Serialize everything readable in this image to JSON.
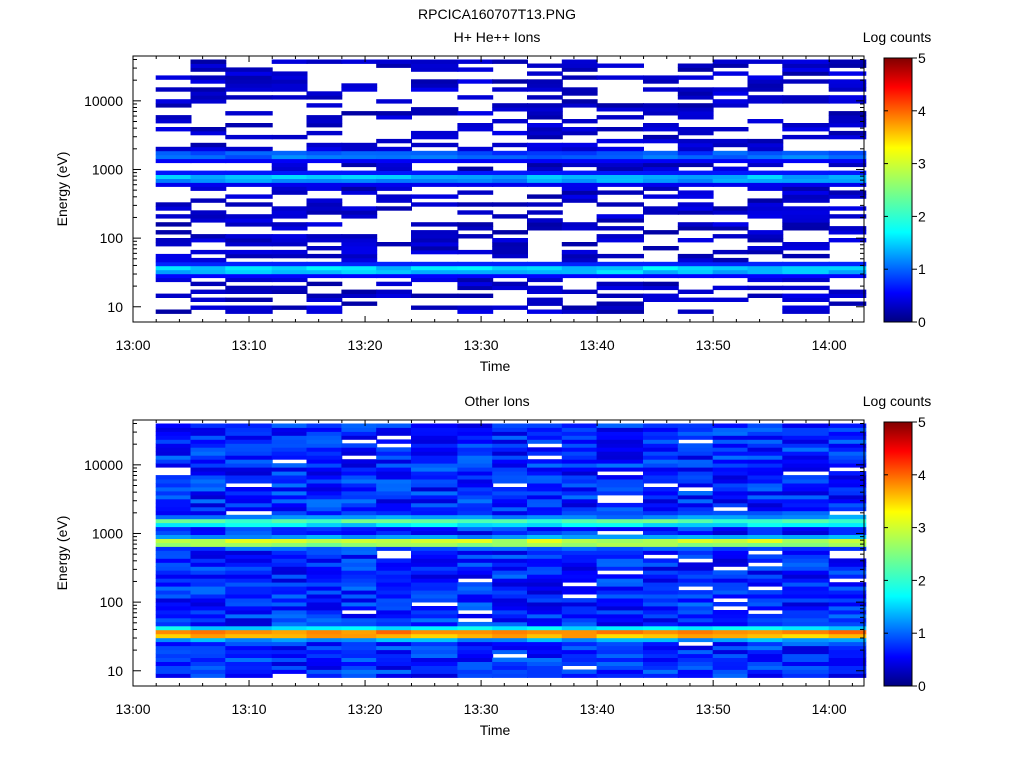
{
  "page_title": "RPCICA160707T13.PNG",
  "chart_data": [
    {
      "type": "heatmap",
      "title": "H+ He++ Ions",
      "xlabel": "Time",
      "ylabel": "Energy (eV)",
      "yscale": "log",
      "ylim": [
        6,
        45000
      ],
      "xlim": [
        "13:00",
        "14:03"
      ],
      "x_ticks": [
        "13:00",
        "13:10",
        "13:20",
        "13:30",
        "13:40",
        "13:50",
        "14:00"
      ],
      "y_ticks": [
        "10",
        "100",
        "1000",
        "10000"
      ],
      "time_bins": [
        "13:02",
        "13:05",
        "13:08",
        "13:12",
        "13:15",
        "13:18",
        "13:21",
        "13:24",
        "13:28",
        "13:31",
        "13:34",
        "13:37",
        "13:40",
        "13:44",
        "13:47",
        "13:50",
        "13:53",
        "13:56",
        "14:00"
      ],
      "colorbar": {
        "label": "Log counts",
        "range": [
          0,
          5
        ],
        "ticks": [
          "0",
          "1",
          "2",
          "3",
          "4",
          "5"
        ]
      },
      "dominant_bands": [
        {
          "energy_eV": 35,
          "log_counts": 1.8
        },
        {
          "energy_eV": 750,
          "log_counts": 1.6
        },
        {
          "energy_eV": 1600,
          "log_counts": 1.2
        }
      ],
      "background_log_counts": 0.35,
      "background_fill_fraction": 0.45
    },
    {
      "type": "heatmap",
      "title": "Other Ions",
      "xlabel": "Time",
      "ylabel": "Energy (eV)",
      "yscale": "log",
      "ylim": [
        6,
        45000
      ],
      "xlim": [
        "13:00",
        "14:03"
      ],
      "x_ticks": [
        "13:00",
        "13:10",
        "13:20",
        "13:30",
        "13:40",
        "13:50",
        "14:00"
      ],
      "y_ticks": [
        "10",
        "100",
        "1000",
        "10000"
      ],
      "time_bins": [
        "13:02",
        "13:05",
        "13:08",
        "13:12",
        "13:15",
        "13:18",
        "13:21",
        "13:24",
        "13:28",
        "13:31",
        "13:34",
        "13:37",
        "13:40",
        "13:44",
        "13:47",
        "13:50",
        "13:53",
        "13:56",
        "14:00"
      ],
      "colorbar": {
        "label": "Log counts",
        "range": [
          0,
          5
        ],
        "ticks": [
          "0",
          "1",
          "2",
          "3",
          "4",
          "5"
        ]
      },
      "dominant_bands": [
        {
          "energy_eV": 35,
          "log_counts": 4.0
        },
        {
          "energy_eV": 750,
          "log_counts": 3.0
        },
        {
          "energy_eV": 1500,
          "log_counts": 2.3
        }
      ],
      "background_log_counts": 0.8,
      "background_fill_fraction": 0.95
    }
  ]
}
